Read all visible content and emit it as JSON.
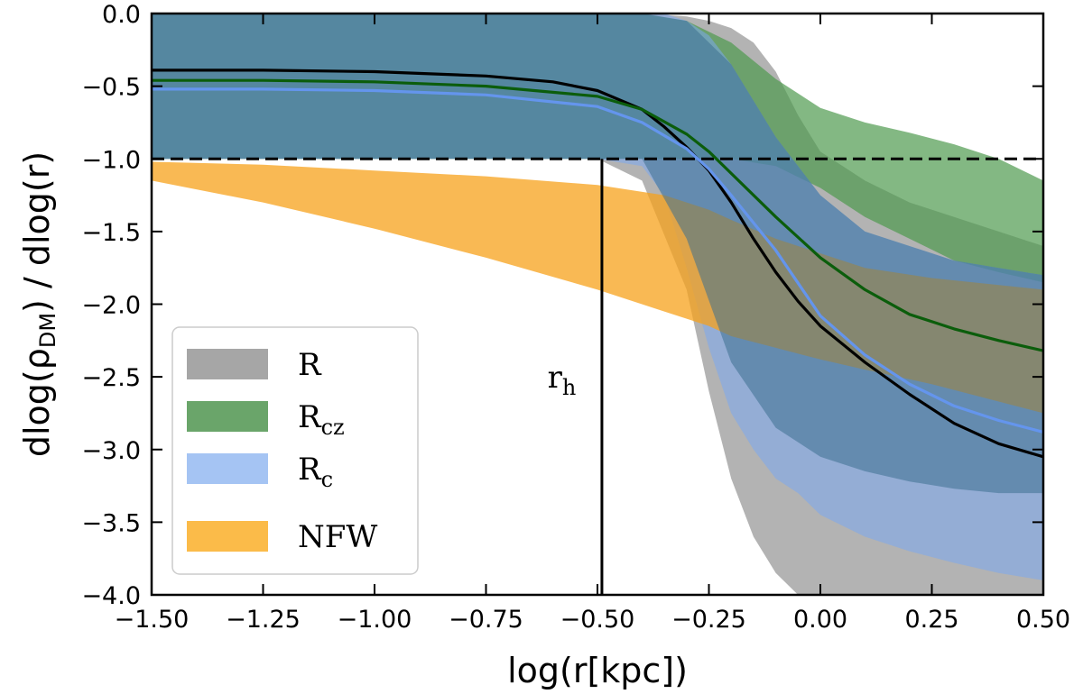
{
  "chart_data": {
    "type": "area",
    "title": "",
    "xlabel": "log(r[kpc])",
    "ylabel": "dlog(ρDM) / dlog(r)",
    "ylabel_parts": {
      "pre": "dlog(ρ",
      "sub": "DM",
      "post": ") / dlog(r)"
    },
    "xlim": [
      -1.5,
      0.5
    ],
    "ylim": [
      -4.0,
      0.0
    ],
    "xticks": [
      -1.5,
      -1.25,
      -1.0,
      -0.75,
      -0.5,
      -0.25,
      0.0,
      0.25,
      0.5
    ],
    "xtick_labels": [
      "−1.50",
      "−1.25",
      "−1.00",
      "−0.75",
      "−0.50",
      "−0.25",
      "0.00",
      "0.25",
      "0.50"
    ],
    "yticks": [
      0.0,
      -0.5,
      -1.0,
      -1.5,
      -2.0,
      -2.5,
      -3.0,
      -3.5,
      -4.0
    ],
    "ytick_labels": [
      "0.0",
      "−0.5",
      "−1.0",
      "−1.5",
      "−2.0",
      "−2.5",
      "−3.0",
      "−3.5",
      "−4.0"
    ],
    "legend_position": "lower-left",
    "bands": [
      {
        "name": "R",
        "label": "R",
        "sub": "",
        "color": "#a6a6a6",
        "opacity": 0.85,
        "x": [
          -1.5,
          -1.25,
          -1.0,
          -0.75,
          -0.6,
          -0.5,
          -0.4,
          -0.3,
          -0.25,
          -0.2,
          -0.15,
          -0.1,
          -0.05,
          0.0,
          0.05,
          0.1,
          0.2,
          0.3,
          0.4,
          0.5
        ],
        "upper": [
          0.0,
          0.0,
          0.0,
          0.0,
          0.0,
          0.0,
          0.0,
          -0.02,
          -0.05,
          -0.1,
          -0.2,
          -0.4,
          -0.7,
          -0.95,
          -1.05,
          -1.15,
          -1.3,
          -1.4,
          -1.5,
          -1.6
        ],
        "lower": [
          -1.0,
          -1.0,
          -1.0,
          -1.0,
          -1.0,
          -1.0,
          -1.15,
          -1.9,
          -2.6,
          -3.2,
          -3.6,
          -3.85,
          -4.0,
          -4.0,
          -4.0,
          -4.0,
          -4.0,
          -4.0,
          -4.0,
          -4.0
        ]
      },
      {
        "name": "Rcz",
        "label": "R",
        "sub": "cz",
        "color": "#4e9a4e",
        "opacity": 0.7,
        "x": [
          -1.5,
          -1.25,
          -1.0,
          -0.75,
          -0.5,
          -0.4,
          -0.3,
          -0.2,
          -0.1,
          0.0,
          0.1,
          0.2,
          0.3,
          0.4,
          0.5
        ],
        "upper": [
          0.0,
          0.0,
          0.0,
          0.0,
          0.0,
          0.0,
          -0.05,
          -0.2,
          -0.45,
          -0.65,
          -0.75,
          -0.82,
          -0.9,
          -1.0,
          -1.15
        ],
        "lower": [
          -1.0,
          -1.0,
          -1.0,
          -1.0,
          -1.0,
          -1.0,
          -1.0,
          -1.0,
          -1.05,
          -1.2,
          -1.4,
          -1.55,
          -1.7,
          -1.78,
          -1.85
        ]
      },
      {
        "name": "Rc",
        "label": "R",
        "sub": "c",
        "color": "#7aa7f0",
        "opacity": 0.55,
        "x": [
          -1.5,
          -1.25,
          -1.0,
          -0.75,
          -0.5,
          -0.4,
          -0.35,
          -0.3,
          -0.25,
          -0.2,
          -0.15,
          -0.1,
          -0.05,
          0.0,
          0.1,
          0.2,
          0.3,
          0.4,
          0.5
        ],
        "upper": [
          0.0,
          0.0,
          0.0,
          0.0,
          0.0,
          0.0,
          0.0,
          -0.05,
          -0.15,
          -0.35,
          -0.6,
          -0.85,
          -1.05,
          -1.25,
          -1.5,
          -1.6,
          -1.7,
          -1.75,
          -1.8
        ],
        "lower": [
          -1.0,
          -1.0,
          -1.0,
          -1.0,
          -1.0,
          -1.05,
          -1.25,
          -1.75,
          -2.3,
          -2.75,
          -3.0,
          -3.2,
          -3.3,
          -3.45,
          -3.6,
          -3.7,
          -3.78,
          -3.85,
          -3.9
        ]
      },
      {
        "name": "NFW",
        "label": "NFW",
        "sub": "",
        "color": "#f7a21b",
        "opacity": 0.75,
        "x": [
          -1.5,
          -1.25,
          -1.0,
          -0.75,
          -0.5,
          -0.35,
          -0.3,
          -0.25,
          -0.2,
          -0.1,
          0.0,
          0.1,
          0.25,
          0.5
        ],
        "upper": [
          -1.02,
          -1.04,
          -1.08,
          -1.12,
          -1.18,
          -1.25,
          -1.3,
          -1.35,
          -1.42,
          -1.55,
          -1.65,
          -1.75,
          -1.82,
          -1.9
        ],
        "lower": [
          -1.15,
          -1.3,
          -1.48,
          -1.68,
          -1.9,
          -2.05,
          -2.1,
          -2.15,
          -2.22,
          -2.3,
          -2.38,
          -2.45,
          -2.55,
          -2.75
        ]
      },
      {
        "name": "overlap",
        "label": "",
        "sub": "",
        "color": "#3d7090",
        "opacity": 0.55,
        "x": [
          -1.5,
          -1.25,
          -1.0,
          -0.75,
          -0.5,
          -0.4,
          -0.3,
          -0.2,
          -0.1,
          0.0,
          0.1,
          0.2,
          0.3,
          0.4,
          0.5
        ],
        "upper": [
          0.0,
          0.0,
          0.0,
          0.0,
          0.0,
          0.0,
          -0.05,
          -0.35,
          -0.85,
          -1.25,
          -1.5,
          -1.6,
          -1.7,
          -1.75,
          -1.8
        ],
        "lower": [
          -1.0,
          -1.0,
          -1.0,
          -1.0,
          -1.0,
          -1.0,
          -1.55,
          -2.4,
          -2.85,
          -3.05,
          -3.15,
          -3.22,
          -3.27,
          -3.3,
          -3.3
        ]
      }
    ],
    "series": [
      {
        "name": "R median",
        "color": "#000000",
        "x": [
          -1.5,
          -1.25,
          -1.0,
          -0.75,
          -0.6,
          -0.5,
          -0.4,
          -0.35,
          -0.3,
          -0.25,
          -0.2,
          -0.15,
          -0.1,
          -0.05,
          0.0,
          0.1,
          0.2,
          0.3,
          0.4,
          0.5
        ],
        "y": [
          -0.39,
          -0.39,
          -0.4,
          -0.43,
          -0.47,
          -0.53,
          -0.66,
          -0.78,
          -0.92,
          -1.08,
          -1.3,
          -1.55,
          -1.78,
          -1.98,
          -2.15,
          -2.4,
          -2.62,
          -2.82,
          -2.96,
          -3.05
        ]
      },
      {
        "name": "Rcz median",
        "color": "#0b5d0b",
        "x": [
          -1.5,
          -1.25,
          -1.0,
          -0.75,
          -0.5,
          -0.4,
          -0.3,
          -0.25,
          -0.2,
          -0.1,
          0.0,
          0.1,
          0.2,
          0.3,
          0.4,
          0.5
        ],
        "y": [
          -0.46,
          -0.46,
          -0.47,
          -0.5,
          -0.57,
          -0.66,
          -0.83,
          -0.95,
          -1.1,
          -1.4,
          -1.68,
          -1.9,
          -2.07,
          -2.17,
          -2.25,
          -2.32
        ]
      },
      {
        "name": "Rc median",
        "color": "#6495ed",
        "x": [
          -1.5,
          -1.25,
          -1.0,
          -0.75,
          -0.5,
          -0.4,
          -0.3,
          -0.25,
          -0.2,
          -0.1,
          0.0,
          0.1,
          0.2,
          0.3,
          0.4,
          0.5
        ],
        "y": [
          -0.52,
          -0.52,
          -0.53,
          -0.56,
          -0.64,
          -0.75,
          -0.93,
          -1.07,
          -1.25,
          -1.63,
          -2.08,
          -2.35,
          -2.55,
          -2.7,
          -2.8,
          -2.88
        ]
      }
    ],
    "hline": {
      "y": -1.0,
      "style": "dashed"
    },
    "vline": {
      "x": -0.49,
      "y_top": -1.0,
      "y_bottom": -4.0
    },
    "annotation": {
      "label": "r",
      "sub": "h",
      "x": -0.58,
      "y": -2.5
    },
    "legend": [
      {
        "label": "R",
        "sub": "",
        "color": "#a6a6a6"
      },
      {
        "label": "R",
        "sub": "cz",
        "color": "#6aa56a"
      },
      {
        "label": "R",
        "sub": "c",
        "color": "#a5c4f3"
      },
      {
        "label": "NFW",
        "sub": "",
        "color": "#fbbb49"
      }
    ]
  }
}
